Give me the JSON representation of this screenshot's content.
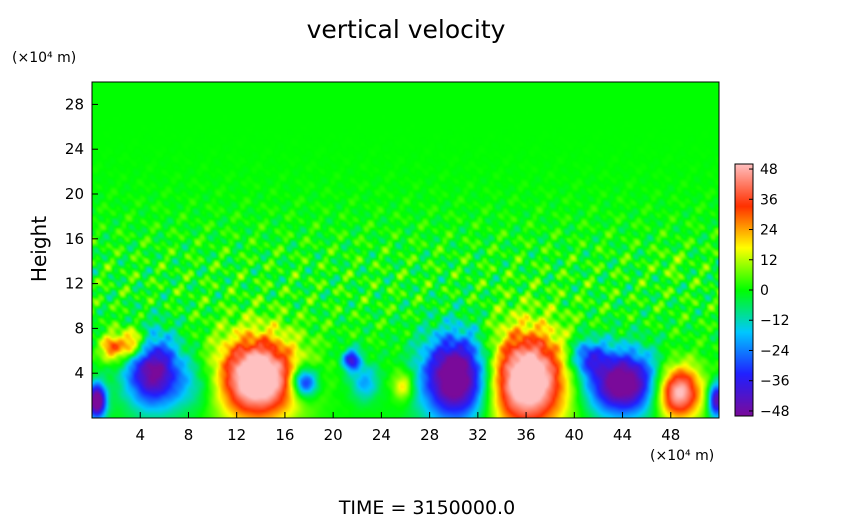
{
  "chart_data": {
    "type": "heatmap",
    "title": "vertical velocity",
    "ylabel": "Height",
    "yunit_label": "(×10⁴ m)",
    "xunit_label": "(×10⁴ m)",
    "footer": "TIME = 3150000.0",
    "xlim": [
      0,
      52
    ],
    "ylim": [
      0,
      30
    ],
    "x_ticks": [
      4,
      8,
      12,
      16,
      20,
      24,
      28,
      32,
      36,
      40,
      44,
      48
    ],
    "y_ticks": [
      4,
      8,
      12,
      16,
      20,
      24,
      28
    ],
    "colorbar": {
      "range": [
        -50,
        50
      ],
      "ticks": [
        "48",
        "36",
        "24",
        "12",
        "0",
        "−12",
        "−24",
        "−36",
        "−48"
      ],
      "tick_values": [
        48,
        36,
        24,
        12,
        0,
        -12,
        -24,
        -36,
        -48
      ],
      "colors": [
        "#7a0a9a",
        "#2020ff",
        "#00c8ff",
        "#00ff00",
        "#ffff00",
        "#ff3000",
        "#ffc0c0"
      ]
    },
    "features": [
      {
        "x": 0.4,
        "z": 1.5,
        "amp": -60,
        "rx": 0.8,
        "rz": 1.6
      },
      {
        "x": 5,
        "z": 4.2,
        "amp": -50,
        "rx": 2.3,
        "rz": 3.4
      },
      {
        "x": 3.3,
        "z": 6.6,
        "amp": 35,
        "rx": 1.4,
        "rz": 1.5
      },
      {
        "x": 1.6,
        "z": 6.2,
        "amp": 28,
        "rx": 0.9,
        "rz": 1.2
      },
      {
        "x": 13.7,
        "z": 3.6,
        "amp": 64,
        "rx": 3.5,
        "rz": 3.9
      },
      {
        "x": 17.6,
        "z": 3.2,
        "amp": -45,
        "rx": 1.1,
        "rz": 1.4
      },
      {
        "x": 21.5,
        "z": 5.2,
        "amp": -38,
        "rx": 0.8,
        "rz": 1.0
      },
      {
        "x": 22.6,
        "z": 3.2,
        "amp": -20,
        "rx": 1.2,
        "rz": 1.7
      },
      {
        "x": 25.8,
        "z": 2.9,
        "amp": 22,
        "rx": 0.9,
        "rz": 1.4
      },
      {
        "x": 30.3,
        "z": 3.6,
        "amp": -64,
        "rx": 3.0,
        "rz": 4.0
      },
      {
        "x": 36,
        "z": 3.4,
        "amp": 64,
        "rx": 3.6,
        "rz": 4.6
      },
      {
        "x": 41,
        "z": 5.5,
        "amp": -28,
        "rx": 1.6,
        "rz": 1.7
      },
      {
        "x": 44,
        "z": 3.1,
        "amp": -58,
        "rx": 3.2,
        "rz": 3.0
      },
      {
        "x": 48.6,
        "z": 2.3,
        "amp": 55,
        "rx": 2.0,
        "rz": 2.5
      },
      {
        "x": 51.8,
        "z": 1.6,
        "amp": -48,
        "rx": 0.7,
        "rz": 1.6
      },
      {
        "x": 8.5,
        "z": 3.0,
        "amp": -14,
        "rx": 2.5,
        "rz": 2.6
      },
      {
        "x": 48,
        "z": 13.8,
        "amp": 5,
        "rx": 1.2,
        "rz": 1.2
      }
    ]
  }
}
